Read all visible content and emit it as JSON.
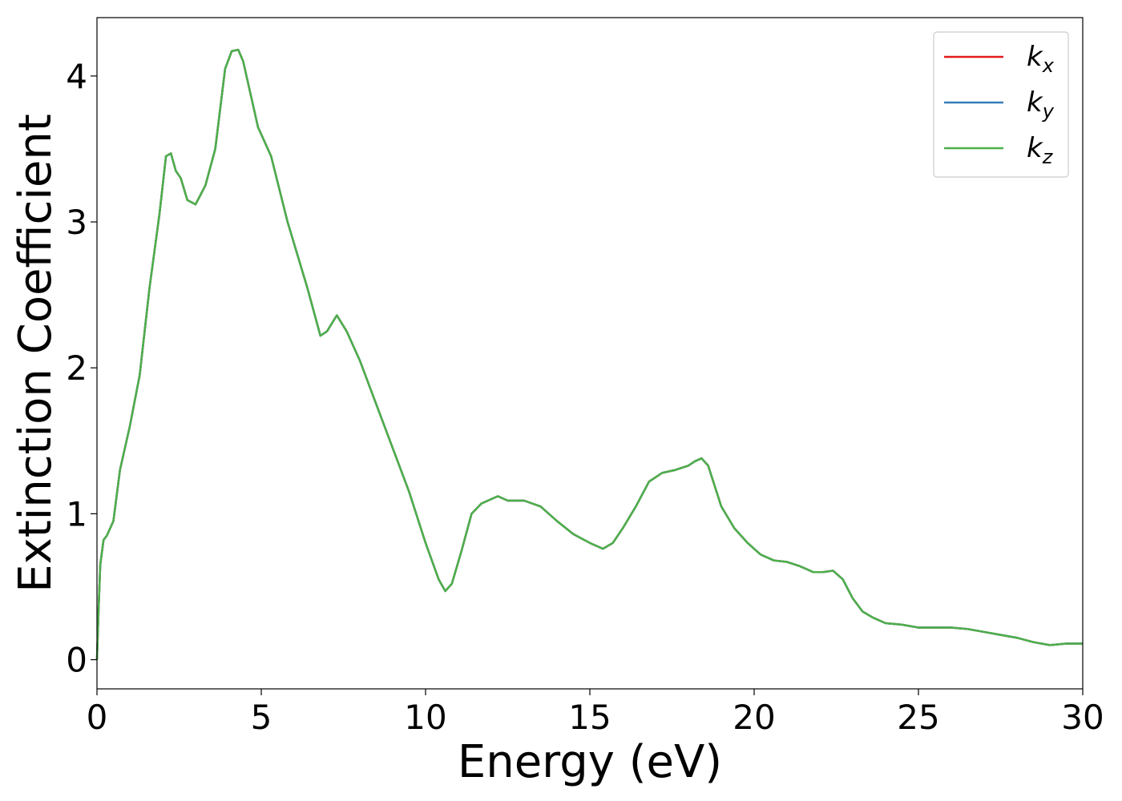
{
  "chart_data": {
    "type": "line",
    "title": "",
    "xlabel": "Energy (eV)",
    "ylabel": "Extinction Coefficient",
    "xlim": [
      0,
      30
    ],
    "ylim": [
      -0.2,
      4.4
    ],
    "xticks": [
      0,
      5,
      10,
      15,
      20,
      25,
      30
    ],
    "yticks": [
      0,
      1,
      2,
      3,
      4
    ],
    "grid": false,
    "legend_position": "top-right",
    "series": [
      {
        "name": "k",
        "subscript": "x",
        "color": "#e41a1c",
        "x": [
          0,
          0.05,
          0.1,
          0.2,
          0.3,
          0.5,
          0.7,
          1.0,
          1.3,
          1.6,
          1.9,
          2.1,
          2.25,
          2.4,
          2.55,
          2.75,
          3.0,
          3.3,
          3.6,
          3.9,
          4.1,
          4.3,
          4.45,
          4.6,
          4.9,
          5.3,
          5.8,
          6.4,
          6.8,
          7.0,
          7.3,
          7.6,
          8.0,
          8.5,
          9.0,
          9.5,
          10.0,
          10.4,
          10.6,
          10.8,
          11.1,
          11.4,
          11.7,
          12.0,
          12.2,
          12.5,
          13.0,
          13.5,
          14.0,
          14.5,
          15.0,
          15.4,
          15.7,
          16.0,
          16.4,
          16.8,
          17.2,
          17.6,
          18.0,
          18.2,
          18.4,
          18.6,
          19.0,
          19.4,
          19.8,
          20.2,
          20.6,
          21.0,
          21.4,
          21.8,
          22.1,
          22.4,
          22.7,
          23.0,
          23.3,
          23.6,
          24.0,
          24.5,
          25.0,
          25.5,
          26.0,
          26.5,
          27.0,
          27.5,
          28.0,
          28.5,
          29.0,
          29.5,
          30.0
        ],
        "y": [
          0.0,
          0.35,
          0.65,
          0.82,
          0.85,
          0.95,
          1.3,
          1.6,
          1.95,
          2.55,
          3.05,
          3.45,
          3.47,
          3.35,
          3.3,
          3.15,
          3.12,
          3.25,
          3.5,
          4.05,
          4.17,
          4.18,
          4.1,
          3.95,
          3.65,
          3.45,
          3.0,
          2.55,
          2.22,
          2.25,
          2.36,
          2.25,
          2.05,
          1.75,
          1.45,
          1.15,
          0.8,
          0.55,
          0.47,
          0.52,
          0.75,
          1.0,
          1.07,
          1.1,
          1.12,
          1.09,
          1.09,
          1.05,
          0.95,
          0.86,
          0.8,
          0.76,
          0.8,
          0.9,
          1.05,
          1.22,
          1.28,
          1.3,
          1.33,
          1.36,
          1.38,
          1.33,
          1.05,
          0.9,
          0.8,
          0.72,
          0.68,
          0.67,
          0.64,
          0.6,
          0.6,
          0.61,
          0.55,
          0.42,
          0.33,
          0.29,
          0.25,
          0.24,
          0.22,
          0.22,
          0.22,
          0.21,
          0.19,
          0.17,
          0.15,
          0.12,
          0.1,
          0.11,
          0.11
        ]
      },
      {
        "name": "k",
        "subscript": "y",
        "color": "#377eb8",
        "x": [
          0,
          0.05,
          0.1,
          0.2,
          0.3,
          0.5,
          0.7,
          1.0,
          1.3,
          1.6,
          1.9,
          2.1,
          2.25,
          2.4,
          2.55,
          2.75,
          3.0,
          3.3,
          3.6,
          3.9,
          4.1,
          4.3,
          4.45,
          4.6,
          4.9,
          5.3,
          5.8,
          6.4,
          6.8,
          7.0,
          7.3,
          7.6,
          8.0,
          8.5,
          9.0,
          9.5,
          10.0,
          10.4,
          10.6,
          10.8,
          11.1,
          11.4,
          11.7,
          12.0,
          12.2,
          12.5,
          13.0,
          13.5,
          14.0,
          14.5,
          15.0,
          15.4,
          15.7,
          16.0,
          16.4,
          16.8,
          17.2,
          17.6,
          18.0,
          18.2,
          18.4,
          18.6,
          19.0,
          19.4,
          19.8,
          20.2,
          20.6,
          21.0,
          21.4,
          21.8,
          22.1,
          22.4,
          22.7,
          23.0,
          23.3,
          23.6,
          24.0,
          24.5,
          25.0,
          25.5,
          26.0,
          26.5,
          27.0,
          27.5,
          28.0,
          28.5,
          29.0,
          29.5,
          30.0
        ],
        "y": [
          0.0,
          0.35,
          0.65,
          0.82,
          0.85,
          0.95,
          1.3,
          1.6,
          1.95,
          2.55,
          3.05,
          3.45,
          3.47,
          3.35,
          3.3,
          3.15,
          3.12,
          3.25,
          3.5,
          4.05,
          4.17,
          4.18,
          4.1,
          3.95,
          3.65,
          3.45,
          3.0,
          2.55,
          2.22,
          2.25,
          2.36,
          2.25,
          2.05,
          1.75,
          1.45,
          1.15,
          0.8,
          0.55,
          0.47,
          0.52,
          0.75,
          1.0,
          1.07,
          1.1,
          1.12,
          1.09,
          1.09,
          1.05,
          0.95,
          0.86,
          0.8,
          0.76,
          0.8,
          0.9,
          1.05,
          1.22,
          1.28,
          1.3,
          1.33,
          1.36,
          1.38,
          1.33,
          1.05,
          0.9,
          0.8,
          0.72,
          0.68,
          0.67,
          0.64,
          0.6,
          0.6,
          0.61,
          0.55,
          0.42,
          0.33,
          0.29,
          0.25,
          0.24,
          0.22,
          0.22,
          0.22,
          0.21,
          0.19,
          0.17,
          0.15,
          0.12,
          0.1,
          0.11,
          0.11
        ]
      },
      {
        "name": "k",
        "subscript": "z",
        "color": "#4daf4a",
        "x": [
          0,
          0.05,
          0.1,
          0.2,
          0.3,
          0.5,
          0.7,
          1.0,
          1.3,
          1.6,
          1.9,
          2.1,
          2.25,
          2.4,
          2.55,
          2.75,
          3.0,
          3.3,
          3.6,
          3.9,
          4.1,
          4.3,
          4.45,
          4.6,
          4.9,
          5.3,
          5.8,
          6.4,
          6.8,
          7.0,
          7.3,
          7.6,
          8.0,
          8.5,
          9.0,
          9.5,
          10.0,
          10.4,
          10.6,
          10.8,
          11.1,
          11.4,
          11.7,
          12.0,
          12.2,
          12.5,
          13.0,
          13.5,
          14.0,
          14.5,
          15.0,
          15.4,
          15.7,
          16.0,
          16.4,
          16.8,
          17.2,
          17.6,
          18.0,
          18.2,
          18.4,
          18.6,
          19.0,
          19.4,
          19.8,
          20.2,
          20.6,
          21.0,
          21.4,
          21.8,
          22.1,
          22.4,
          22.7,
          23.0,
          23.3,
          23.6,
          24.0,
          24.5,
          25.0,
          25.5,
          26.0,
          26.5,
          27.0,
          27.5,
          28.0,
          28.5,
          29.0,
          29.5,
          30.0
        ],
        "y": [
          0.0,
          0.35,
          0.65,
          0.82,
          0.85,
          0.95,
          1.3,
          1.6,
          1.95,
          2.55,
          3.05,
          3.45,
          3.47,
          3.35,
          3.3,
          3.15,
          3.12,
          3.25,
          3.5,
          4.05,
          4.17,
          4.18,
          4.1,
          3.95,
          3.65,
          3.45,
          3.0,
          2.55,
          2.22,
          2.25,
          2.36,
          2.25,
          2.05,
          1.75,
          1.45,
          1.15,
          0.8,
          0.55,
          0.47,
          0.52,
          0.75,
          1.0,
          1.07,
          1.1,
          1.12,
          1.09,
          1.09,
          1.05,
          0.95,
          0.86,
          0.8,
          0.76,
          0.8,
          0.9,
          1.05,
          1.22,
          1.28,
          1.3,
          1.33,
          1.36,
          1.38,
          1.33,
          1.05,
          0.9,
          0.8,
          0.72,
          0.68,
          0.67,
          0.64,
          0.6,
          0.6,
          0.61,
          0.55,
          0.42,
          0.33,
          0.29,
          0.25,
          0.24,
          0.22,
          0.22,
          0.22,
          0.21,
          0.19,
          0.17,
          0.15,
          0.12,
          0.1,
          0.11,
          0.11
        ]
      }
    ]
  }
}
